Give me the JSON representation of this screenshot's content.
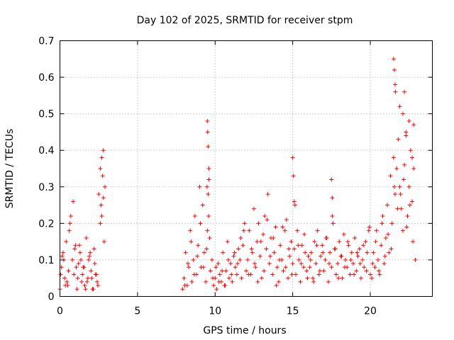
{
  "chart_data": {
    "type": "scatter",
    "title": "Day 102 of 2025, SRMTID for receiver stpm",
    "xlabel": "GPS time / hours",
    "ylabel": "SRMTID / TECUs",
    "xlim": [
      0,
      24
    ],
    "ylim": [
      0,
      0.7
    ],
    "x_ticks": [
      0,
      5,
      10,
      15,
      20
    ],
    "x_tick_labels": [
      "0",
      "5",
      "10",
      "15",
      "20"
    ],
    "y_ticks": [
      0,
      0.1,
      0.2,
      0.3,
      0.4,
      0.5,
      0.6,
      0.7
    ],
    "y_tick_labels": [
      "0",
      "0.1",
      "0.2",
      "0.3",
      "0.4",
      "0.5",
      "0.6",
      "0.7"
    ],
    "grid": true,
    "marker": "+",
    "color": "#ff0000",
    "series": [
      {
        "name": "SRMTID",
        "x": [
          0.0,
          0.1,
          0.2,
          0.3,
          0.4,
          0.5,
          0.6,
          0.7,
          0.8,
          0.9,
          1.0,
          1.1,
          1.2,
          1.3,
          1.4,
          1.5,
          1.6,
          1.7,
          1.8,
          1.9,
          2.0,
          2.1,
          2.2,
          2.3,
          2.4,
          2.5,
          2.6,
          2.7,
          2.8,
          2.9,
          0.05,
          0.25,
          0.45,
          0.65,
          0.85,
          1.05,
          1.25,
          1.45,
          1.65,
          1.85,
          2.05,
          2.25,
          2.45,
          2.65,
          2.75,
          2.85,
          0.15,
          0.35,
          0.55,
          0.95,
          1.15,
          1.35,
          1.55,
          1.75,
          1.95,
          2.15,
          2.35,
          2.6,
          2.7,
          2.8,
          7.9,
          8.0,
          8.1,
          8.2,
          8.3,
          8.4,
          8.5,
          8.6,
          8.7,
          8.8,
          8.9,
          9.0,
          9.1,
          9.2,
          9.3,
          9.4,
          9.5,
          9.6,
          9.7,
          9.8,
          9.9,
          10.0,
          10.1,
          10.2,
          10.3,
          10.4,
          10.5,
          10.6,
          10.7,
          10.8,
          10.9,
          11.0,
          11.1,
          11.2,
          11.3,
          11.4,
          11.5,
          11.6,
          11.7,
          11.8,
          11.9,
          12.0,
          8.05,
          8.25,
          8.45,
          8.65,
          8.85,
          9.05,
          9.25,
          9.45,
          9.55,
          9.65,
          9.85,
          10.05,
          10.25,
          10.45,
          10.65,
          10.85,
          11.05,
          11.25,
          11.45,
          11.65,
          11.85,
          9.5,
          9.52,
          9.55,
          9.6,
          9.48,
          9.58,
          12.1,
          12.2,
          12.3,
          12.4,
          12.5,
          12.6,
          12.7,
          12.8,
          12.9,
          13.0,
          13.1,
          13.2,
          13.3,
          13.4,
          13.5,
          13.6,
          13.7,
          13.8,
          13.9,
          14.0,
          14.1,
          14.2,
          14.3,
          14.4,
          14.5,
          14.6,
          14.7,
          14.8,
          14.9,
          15.0,
          15.1,
          15.2,
          15.3,
          15.4,
          15.5,
          15.6,
          15.7,
          15.8,
          15.9,
          16.0,
          12.15,
          12.35,
          12.55,
          12.75,
          12.95,
          13.15,
          13.35,
          13.55,
          13.75,
          13.95,
          14.15,
          14.35,
          14.55,
          14.75,
          14.95,
          15.15,
          15.35,
          15.55,
          15.75,
          15.95,
          16.1,
          16.2,
          16.3,
          16.4,
          16.5,
          16.6,
          16.7,
          16.8,
          16.9,
          17.0,
          17.1,
          17.2,
          17.3,
          17.4,
          17.5,
          17.6,
          17.7,
          17.8,
          17.9,
          18.0,
          18.1,
          18.2,
          18.3,
          18.4,
          18.5,
          18.6,
          18.7,
          18.8,
          18.9,
          19.0,
          19.1,
          19.2,
          19.3,
          19.4,
          19.5,
          19.6,
          19.7,
          19.8,
          19.9,
          20.0,
          16.15,
          16.35,
          16.55,
          16.75,
          16.95,
          17.15,
          17.35,
          17.55,
          17.75,
          17.95,
          18.15,
          18.35,
          18.55,
          18.75,
          18.95,
          19.15,
          19.35,
          19.55,
          19.75,
          19.95,
          15.0,
          15.05,
          15.1,
          17.5,
          17.55,
          20.1,
          20.2,
          20.3,
          20.4,
          20.5,
          20.6,
          20.7,
          20.8,
          20.9,
          21.0,
          21.1,
          21.2,
          21.3,
          21.4,
          21.5,
          21.6,
          21.7,
          21.8,
          21.9,
          22.0,
          22.1,
          22.2,
          22.3,
          22.4,
          22.5,
          22.6,
          22.7,
          22.8,
          22.9,
          20.15,
          20.35,
          20.55,
          20.75,
          20.95,
          21.15,
          21.35,
          21.55,
          21.75,
          21.95,
          22.15,
          22.35,
          22.55,
          22.75,
          21.5,
          21.55,
          21.6,
          21.62,
          21.9,
          22.1,
          22.2,
          22.3,
          22.5,
          22.7,
          22.8
        ],
        "y": [
          0.02,
          0.08,
          0.12,
          0.05,
          0.15,
          0.03,
          0.18,
          0.22,
          0.1,
          0.06,
          0.14,
          0.02,
          0.09,
          0.12,
          0.04,
          0.08,
          0.03,
          0.16,
          0.05,
          0.11,
          0.07,
          0.02,
          0.13,
          0.06,
          0.04,
          0.28,
          0.35,
          0.22,
          0.4,
          0.3,
          0.06,
          0.1,
          0.04,
          0.2,
          0.26,
          0.08,
          0.14,
          0.06,
          0.02,
          0.1,
          0.05,
          0.09,
          0.03,
          0.25,
          0.33,
          0.15,
          0.11,
          0.03,
          0.07,
          0.13,
          0.05,
          0.1,
          0.08,
          0.04,
          0.12,
          0.02,
          0.06,
          0.2,
          0.38,
          0.27,
          0.02,
          0.05,
          0.12,
          0.03,
          0.08,
          0.18,
          0.04,
          0.1,
          0.22,
          0.06,
          0.14,
          0.3,
          0.08,
          0.25,
          0.12,
          0.04,
          0.18,
          0.32,
          0.07,
          0.1,
          0.03,
          0.05,
          0.02,
          0.09,
          0.06,
          0.04,
          0.12,
          0.03,
          0.07,
          0.15,
          0.05,
          0.09,
          0.04,
          0.11,
          0.08,
          0.06,
          0.13,
          0.1,
          0.05,
          0.14,
          0.2,
          0.07,
          0.03,
          0.09,
          0.15,
          0.06,
          0.11,
          0.2,
          0.08,
          0.13,
          0.28,
          0.16,
          0.05,
          0.08,
          0.04,
          0.07,
          0.03,
          0.1,
          0.06,
          0.12,
          0.09,
          0.16,
          0.18,
          0.48,
          0.45,
          0.41,
          0.35,
          0.3,
          0.22,
          0.1,
          0.18,
          0.06,
          0.12,
          0.24,
          0.08,
          0.15,
          0.2,
          0.11,
          0.05,
          0.17,
          0.22,
          0.13,
          0.28,
          0.09,
          0.16,
          0.06,
          0.12,
          0.19,
          0.08,
          0.04,
          0.14,
          0.1,
          0.07,
          0.18,
          0.21,
          0.05,
          0.11,
          0.15,
          0.09,
          0.13,
          0.06,
          0.18,
          0.1,
          0.04,
          0.14,
          0.08,
          0.12,
          0.07,
          0.11,
          0.06,
          0.13,
          0.09,
          0.04,
          0.15,
          0.07,
          0.21,
          0.11,
          0.16,
          0.03,
          0.1,
          0.19,
          0.08,
          0.13,
          0.06,
          0.25,
          0.14,
          0.09,
          0.17,
          0.05,
          0.08,
          0.12,
          0.05,
          0.15,
          0.09,
          0.18,
          0.06,
          0.11,
          0.14,
          0.07,
          0.1,
          0.16,
          0.04,
          0.12,
          0.08,
          0.2,
          0.13,
          0.06,
          0.09,
          0.15,
          0.11,
          0.05,
          0.17,
          0.1,
          0.08,
          0.14,
          0.06,
          0.12,
          0.09,
          0.16,
          0.07,
          0.11,
          0.13,
          0.05,
          0.1,
          0.08,
          0.15,
          0.12,
          0.18,
          0.06,
          0.1,
          0.04,
          0.14,
          0.07,
          0.12,
          0.16,
          0.09,
          0.22,
          0.13,
          0.05,
          0.11,
          0.08,
          0.15,
          0.1,
          0.06,
          0.12,
          0.09,
          0.14,
          0.07,
          0.19,
          0.38,
          0.33,
          0.26,
          0.32,
          0.27,
          0.05,
          0.12,
          0.08,
          0.18,
          0.1,
          0.06,
          0.14,
          0.22,
          0.09,
          0.16,
          0.25,
          0.12,
          0.33,
          0.2,
          0.38,
          0.28,
          0.35,
          0.43,
          0.3,
          0.24,
          0.18,
          0.36,
          0.45,
          0.22,
          0.3,
          0.4,
          0.26,
          0.35,
          0.1,
          0.09,
          0.15,
          0.07,
          0.2,
          0.11,
          0.17,
          0.13,
          0.3,
          0.24,
          0.28,
          0.32,
          0.19,
          0.25,
          0.15,
          0.65,
          0.62,
          0.58,
          0.56,
          0.52,
          0.5,
          0.56,
          0.44,
          0.48,
          0.38,
          0.47
        ]
      }
    ]
  }
}
